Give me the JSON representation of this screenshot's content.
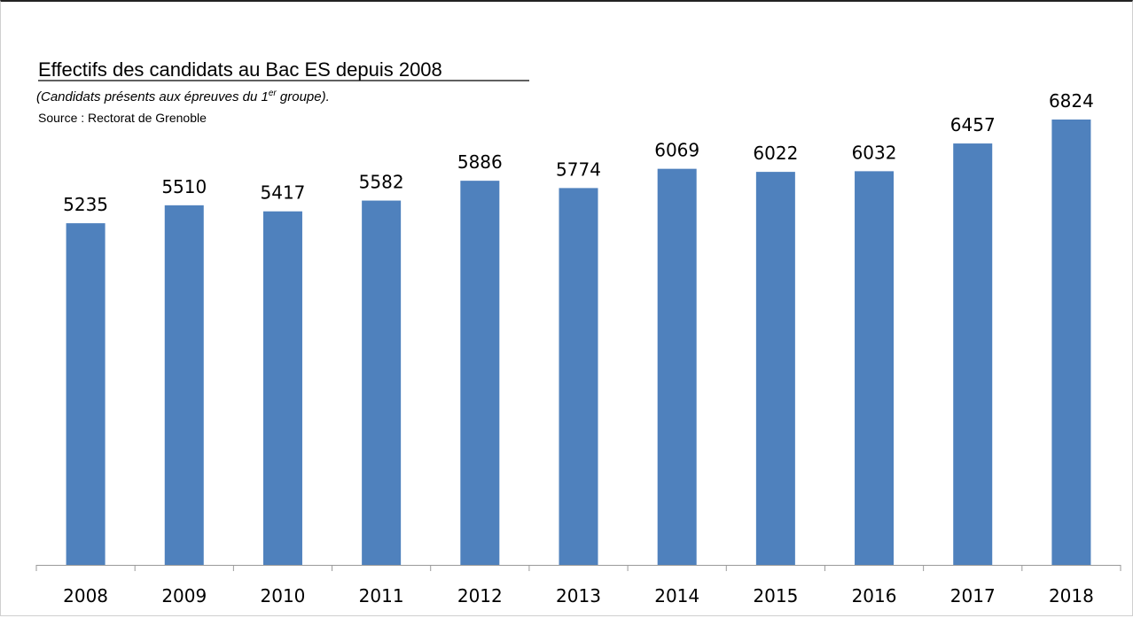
{
  "chart_data": {
    "type": "bar",
    "title": "Effectifs des candidats au Bac ES depuis 2008",
    "subtitle": {
      "prefix": "(Candidats présents aux épreuves du 1",
      "superscript": "er",
      "suffix": " groupe)."
    },
    "source": "Source : Rectorat de Grenoble",
    "categories": [
      "2008",
      "2009",
      "2010",
      "2011",
      "2012",
      "2013",
      "2014",
      "2015",
      "2016",
      "2017",
      "2018"
    ],
    "values": [
      5235,
      5510,
      5417,
      5582,
      5886,
      5774,
      6069,
      6022,
      6032,
      6457,
      6824
    ],
    "data_labels": [
      "5235",
      "5510",
      "5417",
      "5582",
      "5886",
      "5774",
      "6069",
      "6022",
      "6032",
      "6457",
      "6824"
    ],
    "xlabel": "",
    "ylabel": "",
    "ylim": [
      0,
      7000
    ],
    "grid": false,
    "legend": "none",
    "bar_color": "#4f81bd",
    "axis_color": "#9a9a9a"
  }
}
